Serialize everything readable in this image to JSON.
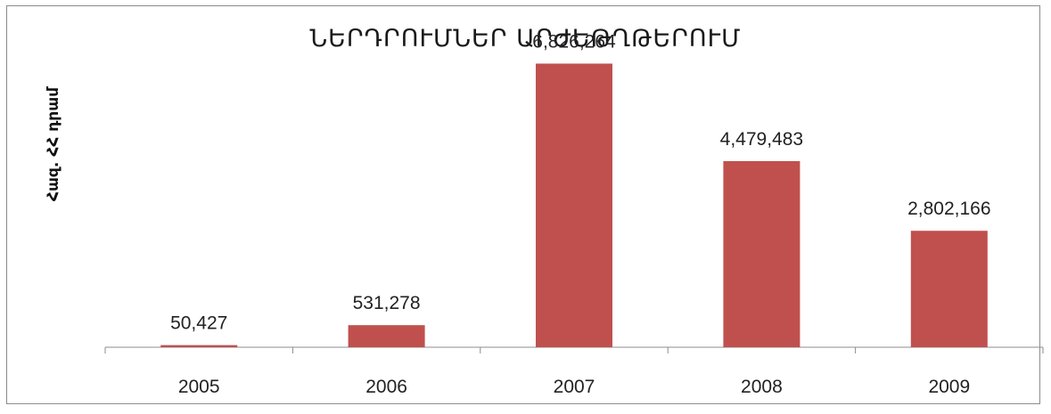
{
  "chart_data": {
    "type": "bar",
    "title": "ՆԵՐԴՐՈՒՄՆԵՐ ԱՐԺԵԹՂԹԵՐՈՒՄ",
    "ylabel": "Հազ. ՀՀ դրամ",
    "xlabel": "",
    "categories": [
      "2005",
      "2006",
      "2007",
      "2008",
      "2009"
    ],
    "values": [
      50427,
      531278,
      6826264,
      4479483,
      2802166
    ],
    "value_labels": [
      "50,427",
      "531,278",
      "6,826,264",
      "4,479,483",
      "2,802,166"
    ],
    "ylim": [
      0,
      7500000
    ],
    "grid": false,
    "legend": "none",
    "bar_color": "#c0504d"
  }
}
